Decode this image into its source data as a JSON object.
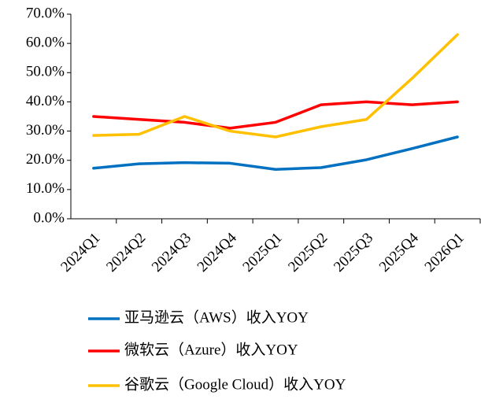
{
  "chart_data": {
    "type": "line",
    "categories": [
      "2024Q1",
      "2024Q2",
      "2024Q3",
      "2024Q4",
      "2025Q1",
      "2025Q2",
      "2025Q3",
      "2025Q4",
      "2026Q1"
    ],
    "series": [
      {
        "name": "亚马逊云（AWS）收入YOY",
        "color": "#0070c0",
        "values": [
          17.3,
          18.8,
          19.2,
          19.0,
          16.9,
          17.5,
          20.2,
          24.0,
          28.0
        ]
      },
      {
        "name": "微软云（Azure）收入YOY",
        "color": "#ff0000",
        "values": [
          35.0,
          34.0,
          33.0,
          31.0,
          33.0,
          39.0,
          40.0,
          39.0,
          40.0
        ]
      },
      {
        "name": "谷歌云（Google Cloud）收入YOY",
        "color": "#ffc000",
        "values": [
          28.5,
          28.9,
          35.0,
          30.0,
          28.0,
          31.5,
          34.0,
          48.0,
          63.0
        ]
      }
    ],
    "ylim": [
      0,
      70
    ],
    "yticks": [
      {
        "value": 0,
        "label": "0.0%"
      },
      {
        "value": 10,
        "label": "10.0%"
      },
      {
        "value": 20,
        "label": "20.0%"
      },
      {
        "value": 30,
        "label": "30.0%"
      },
      {
        "value": 40,
        "label": "40.0%"
      },
      {
        "value": 50,
        "label": "50.0%"
      },
      {
        "value": 60,
        "label": "60.0%"
      },
      {
        "value": 70,
        "label": "70.0%"
      }
    ],
    "grid": false,
    "legend": "bottom"
  }
}
